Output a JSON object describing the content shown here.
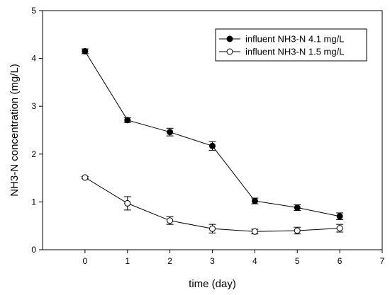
{
  "chart_data": {
    "type": "line",
    "title": "",
    "xlabel": "time (day)",
    "ylabel": "NH3-N concentration (mg/L)",
    "xlim": [
      -1,
      7
    ],
    "ylim": [
      0,
      5
    ],
    "xticks": [
      0,
      1,
      2,
      3,
      4,
      5,
      6,
      7
    ],
    "yticks": [
      0,
      1,
      2,
      3,
      4,
      5
    ],
    "grid": false,
    "legend_position": "top-right",
    "x": [
      0,
      1,
      2,
      3,
      4,
      5,
      6
    ],
    "series": [
      {
        "name": "influent NH3-N  4.1 mg/L",
        "marker": "filled-circle",
        "values": [
          4.15,
          2.71,
          2.46,
          2.17,
          1.02,
          0.88,
          0.7
        ],
        "errors": [
          0.05,
          0.05,
          0.08,
          0.09,
          0.06,
          0.06,
          0.07
        ]
      },
      {
        "name": "influent NH3-N  1.5 mg/L",
        "marker": "open-circle",
        "values": [
          1.51,
          0.97,
          0.61,
          0.44,
          0.38,
          0.4,
          0.45
        ],
        "errors": [
          0.02,
          0.14,
          0.08,
          0.09,
          0.05,
          0.07,
          0.08
        ]
      }
    ]
  }
}
